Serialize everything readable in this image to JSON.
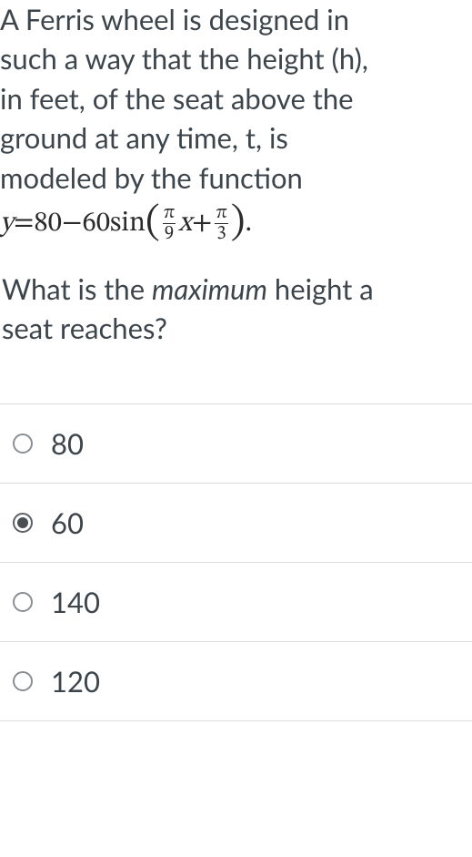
{
  "question": {
    "intro_lines": [
      "A Ferris wheel is designed in",
      "such a way that the height (h),",
      "in feet, of the seat above the",
      "ground at any time, t, is",
      "modeled by the function"
    ],
    "equation": {
      "y": "y",
      "eq": " = ",
      "c1": "80",
      "minus": " − ",
      "c2": "60",
      "sin": " sin",
      "lp": "(",
      "f1n": "π",
      "f1d": "9",
      "x": "x",
      "plus": " + ",
      "f2n": "π",
      "f2d": "3",
      "rp": ")",
      "dot": "."
    },
    "tail_1": "What is the ",
    "tail_em": "maximum",
    "tail_2": " height a",
    "tail_3": "seat reaches?"
  },
  "options": [
    {
      "label": "80",
      "selected": false
    },
    {
      "label": "60",
      "selected": true
    },
    {
      "label": "140",
      "selected": false
    },
    {
      "label": "120",
      "selected": false
    }
  ]
}
